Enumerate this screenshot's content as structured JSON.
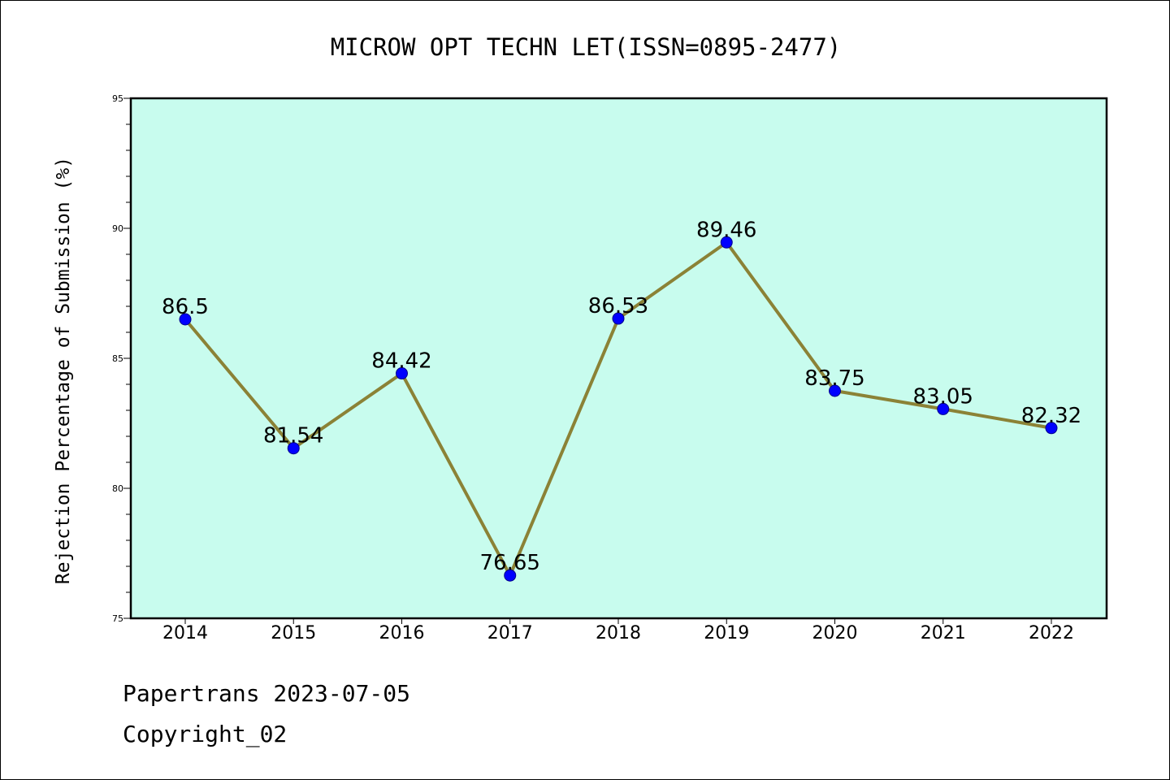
{
  "chart_data": {
    "type": "line",
    "title": "MICROW OPT TECHN LET(ISSN=0895-2477)",
    "xlabel": "",
    "ylabel": "Rejection Percentage of Submission (%)",
    "categories": [
      "2014",
      "2015",
      "2016",
      "2017",
      "2018",
      "2019",
      "2020",
      "2021",
      "2022"
    ],
    "series": [
      {
        "values": [
          86.5,
          81.54,
          84.42,
          76.65,
          86.53,
          89.46,
          83.75,
          83.05,
          82.32
        ]
      }
    ],
    "data_labels": [
      "86.5",
      "81.54",
      "84.42",
      "76.65",
      "86.53",
      "89.46",
      "83.75",
      "83.05",
      "82.32"
    ],
    "ylim": [
      75,
      95
    ],
    "yticks": [
      75,
      80,
      85,
      90,
      95
    ],
    "ytick_labels": [
      "75",
      "80",
      "85",
      "90",
      "95"
    ],
    "grid": false,
    "legend": "none",
    "colors": {
      "plot_background": "#c8fcee",
      "line": "#8b8236",
      "marker": "#0000ff",
      "marker_edge": "#00008b",
      "axes": "#000000"
    }
  },
  "footer": {
    "line1": "Papertrans 2023-07-05",
    "line2": "Copyright_02"
  }
}
